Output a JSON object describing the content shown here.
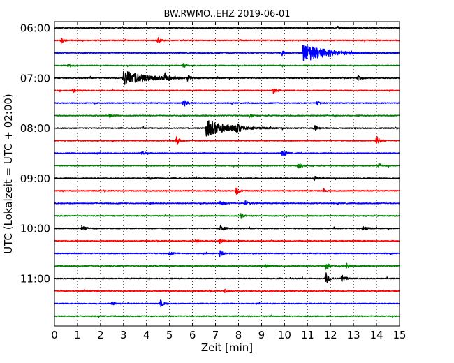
{
  "chart_data": {
    "type": "line",
    "title": "BW.RWMO..EHZ 2019-06-01",
    "xlabel": "Zeit  [min]",
    "ylabel": "UTC (Lokalzeit = UTC + 02:00)",
    "xlim": [
      0,
      15
    ],
    "x_ticks": [
      "0",
      "1",
      "2",
      "3",
      "4",
      "5",
      "6",
      "7",
      "8",
      "9",
      "10",
      "11",
      "12",
      "13",
      "14",
      "15"
    ],
    "y_ticks": [
      "06:00",
      "07:00",
      "08:00",
      "09:00",
      "10:00",
      "11:00"
    ],
    "trace_interval_min": 15,
    "start_time": "06:00",
    "trace_colors": [
      "#000000",
      "#ff0000",
      "#0000ff",
      "#008000"
    ],
    "grid_x": "dotted",
    "traces": [
      {
        "start": "06:00",
        "events": [
          [
            12.3,
            0.18
          ]
        ]
      },
      {
        "start": "06:15",
        "events": [
          [
            0.3,
            0.25
          ],
          [
            4.5,
            0.3
          ]
        ]
      },
      {
        "start": "06:30",
        "events": [
          [
            10.8,
            1.0
          ],
          [
            9.9,
            0.25
          ]
        ]
      },
      {
        "start": "06:45",
        "events": [
          [
            0.6,
            0.25
          ],
          [
            5.6,
            0.2
          ]
        ]
      },
      {
        "start": "07:00",
        "events": [
          [
            3.0,
            0.75
          ],
          [
            4.8,
            0.55
          ],
          [
            5.8,
            0.35
          ],
          [
            13.2,
            0.25
          ]
        ]
      },
      {
        "start": "07:15",
        "events": [
          [
            9.5,
            0.35
          ],
          [
            0.8,
            0.2
          ]
        ]
      },
      {
        "start": "07:30",
        "events": [
          [
            5.6,
            0.45
          ],
          [
            11.4,
            0.25
          ]
        ]
      },
      {
        "start": "07:45",
        "events": [
          [
            2.4,
            0.25
          ],
          [
            8.5,
            0.2
          ]
        ]
      },
      {
        "start": "08:00",
        "events": [
          [
            6.6,
            0.8
          ],
          [
            7.9,
            0.55
          ],
          [
            11.3,
            0.3
          ]
        ]
      },
      {
        "start": "08:15",
        "events": [
          [
            5.3,
            0.45
          ],
          [
            14.0,
            0.5
          ]
        ]
      },
      {
        "start": "08:30",
        "events": [
          [
            9.9,
            0.4
          ],
          [
            3.8,
            0.2
          ]
        ]
      },
      {
        "start": "08:45",
        "events": [
          [
            10.6,
            0.35
          ],
          [
            14.1,
            0.2
          ]
        ]
      },
      {
        "start": "09:00",
        "events": [
          [
            11.3,
            0.2
          ],
          [
            4.1,
            0.18
          ]
        ]
      },
      {
        "start": "09:15",
        "events": [
          [
            7.9,
            0.45
          ],
          [
            11.7,
            0.25
          ]
        ]
      },
      {
        "start": "09:30",
        "events": [
          [
            7.2,
            0.3
          ],
          [
            8.3,
            0.25
          ]
        ]
      },
      {
        "start": "09:45",
        "events": [
          [
            8.1,
            0.25
          ]
        ]
      },
      {
        "start": "10:00",
        "events": [
          [
            1.2,
            0.3
          ],
          [
            7.2,
            0.4
          ],
          [
            13.4,
            0.3
          ]
        ]
      },
      {
        "start": "10:15",
        "events": [
          [
            7.2,
            0.35
          ],
          [
            6.1,
            0.2
          ]
        ]
      },
      {
        "start": "10:30",
        "events": [
          [
            7.2,
            0.35
          ],
          [
            5.0,
            0.2
          ]
        ]
      },
      {
        "start": "10:45",
        "events": [
          [
            11.8,
            0.45
          ],
          [
            12.7,
            0.3
          ],
          [
            9.2,
            0.2
          ]
        ]
      },
      {
        "start": "11:00",
        "events": [
          [
            11.8,
            0.6
          ],
          [
            12.5,
            0.45
          ]
        ]
      },
      {
        "start": "11:15",
        "events": [
          [
            7.4,
            0.15
          ]
        ]
      },
      {
        "start": "11:30",
        "events": [
          [
            4.6,
            0.35
          ],
          [
            2.5,
            0.15
          ]
        ]
      },
      {
        "start": "11:45",
        "events": []
      }
    ]
  }
}
